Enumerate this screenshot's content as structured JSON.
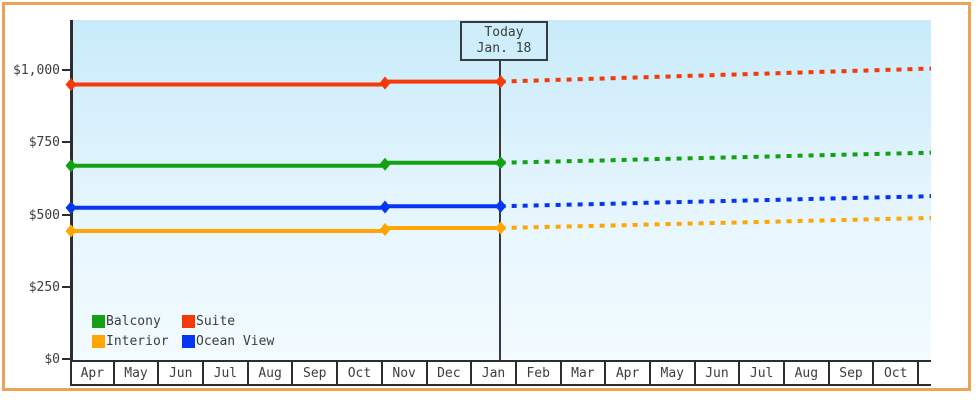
{
  "chart_data": {
    "type": "line",
    "title": "",
    "x_categories": [
      "Apr",
      "May",
      "Jun",
      "Jul",
      "Aug",
      "Sep",
      "Oct",
      "Nov",
      "Dec",
      "Jan",
      "Feb",
      "Mar",
      "Apr",
      "May",
      "Jun",
      "Jul",
      "Aug",
      "Sep",
      "Oct"
    ],
    "y_ticks": [
      1000,
      750,
      500,
      250,
      0
    ],
    "y_tick_labels": [
      "$1,000",
      "$750",
      "$500",
      "$250",
      "$0"
    ],
    "ylim": [
      0,
      1170
    ],
    "grid": false,
    "legend_position": "bottom-left",
    "today": {
      "label": "Today",
      "date_label": "Jan. 18",
      "month": "Jan",
      "month_index": 9,
      "day_fraction": 0.57
    },
    "line_style": {
      "past": "solid",
      "forecast": "dotted-after-today"
    },
    "series": [
      {
        "name": "Balcony",
        "color": "#13a113",
        "price_apr_to_oct": 670,
        "price_nov_to_today": 680,
        "forecast_end_oct": 715
      },
      {
        "name": "Suite",
        "color": "#f53a08",
        "price_apr_to_oct": 950,
        "price_nov_to_today": 960,
        "forecast_end_oct": 1005
      },
      {
        "name": "Interior",
        "color": "#ffa504",
        "price_apr_to_oct": 445,
        "price_nov_to_today": 455,
        "forecast_end_oct": 490
      },
      {
        "name": "Ocean View",
        "color": "#0636f2",
        "price_apr_to_oct": 525,
        "price_nov_to_today": 530,
        "forecast_end_oct": 565
      }
    ]
  }
}
